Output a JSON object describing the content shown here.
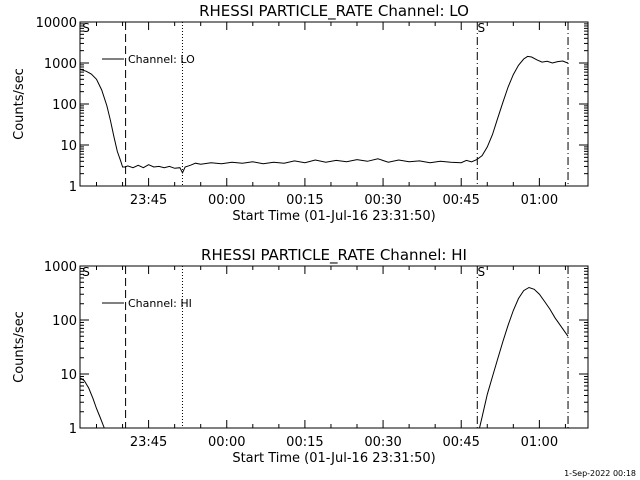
{
  "chart_data": [
    {
      "type": "line",
      "title": "RHESSI PARTICLE_RATE Channel: LO",
      "xlabel": "Start Time (01-Jul-16 23:31:50)",
      "ylabel": "Counts/sec",
      "yscale": "log",
      "ylim": [
        1,
        10000
      ],
      "yticks": [
        1,
        10,
        100,
        1000,
        10000
      ],
      "ytick_labels": [
        "1",
        "10",
        "100",
        "1000",
        "10000"
      ],
      "xlim": [
        "23:31:50",
        "01:09:20"
      ],
      "xticks": [
        "23:45",
        "00:00",
        "00:15",
        "00:30",
        "00:45",
        "01:00"
      ],
      "grid": false,
      "legend": {
        "position": "top-left",
        "entries": [
          "Channel: LO"
        ]
      },
      "markers": [
        {
          "time": "23:40:35",
          "style": "dashed"
        },
        {
          "time": "23:51:30",
          "style": "dotted"
        },
        {
          "time": "00:48:05",
          "style": "dash-dot",
          "label": "S"
        },
        {
          "time": "01:05:30",
          "style": "dash-dot"
        }
      ],
      "corner_labels": [
        "S"
      ],
      "series": [
        {
          "name": "Channel: LO",
          "x": [
            "23:31:50",
            "23:33:00",
            "23:34:00",
            "23:35:00",
            "23:36:00",
            "23:37:00",
            "23:37:40",
            "23:38:20",
            "23:39:00",
            "23:39:40",
            "23:40:00",
            "23:40:30",
            "23:41:00",
            "23:42:00",
            "23:43:00",
            "23:44:00",
            "23:45:00",
            "23:46:00",
            "23:47:00",
            "23:48:00",
            "23:49:00",
            "23:50:00",
            "23:51:00",
            "23:51:30",
            "23:52:00",
            "23:53:00",
            "23:54:00",
            "23:55:00",
            "23:57:00",
            "23:59:00",
            "00:01:00",
            "00:03:00",
            "00:05:00",
            "00:07:00",
            "00:09:00",
            "00:11:00",
            "00:13:00",
            "00:15:00",
            "00:17:00",
            "00:19:00",
            "00:21:00",
            "00:23:00",
            "00:25:00",
            "00:27:00",
            "00:29:00",
            "00:31:00",
            "00:33:00",
            "00:35:00",
            "00:37:00",
            "00:39:00",
            "00:41:00",
            "00:43:00",
            "00:45:00",
            "00:46:00",
            "00:47:00",
            "00:48:00",
            "00:49:00",
            "00:50:00",
            "00:51:00",
            "00:52:00",
            "00:53:00",
            "00:54:00",
            "00:55:00",
            "00:56:00",
            "00:57:00",
            "00:57:45",
            "00:58:30",
            "00:59:30",
            "01:00:30",
            "01:01:30",
            "01:02:30",
            "01:03:30",
            "01:04:30",
            "01:05:00",
            "01:05:30"
          ],
          "values": [
            700,
            630,
            540,
            400,
            220,
            90,
            40,
            16,
            7,
            4,
            2.9,
            2.9,
            3.1,
            2.8,
            3.2,
            2.8,
            3.3,
            2.9,
            3.0,
            2.8,
            3.0,
            2.7,
            2.8,
            2.1,
            2.9,
            3.2,
            3.6,
            3.4,
            3.7,
            3.5,
            3.8,
            3.6,
            3.9,
            3.5,
            3.8,
            3.6,
            4.1,
            3.7,
            4.3,
            3.8,
            4.2,
            3.9,
            4.4,
            4.0,
            4.6,
            3.8,
            4.3,
            3.9,
            4.1,
            3.7,
            4.0,
            3.8,
            3.7,
            4.2,
            3.9,
            4.4,
            5.5,
            9,
            18,
            45,
            110,
            260,
            520,
            880,
            1250,
            1450,
            1400,
            1200,
            1050,
            1100,
            1000,
            1080,
            1120,
            1050,
            1000
          ]
        }
      ]
    },
    {
      "type": "line",
      "title": "RHESSI PARTICLE_RATE Channel: HI",
      "xlabel": "Start Time (01-Jul-16 23:31:50)",
      "ylabel": "Counts/sec",
      "yscale": "log",
      "ylim": [
        1,
        1000
      ],
      "yticks": [
        1,
        10,
        100,
        1000
      ],
      "ytick_labels": [
        "1",
        "10",
        "100",
        "1000"
      ],
      "xlim": [
        "23:31:50",
        "01:09:20"
      ],
      "xticks": [
        "23:45",
        "00:00",
        "00:15",
        "00:30",
        "00:45",
        "01:00"
      ],
      "grid": false,
      "legend": {
        "position": "top-left",
        "entries": [
          "Channel: HI"
        ]
      },
      "markers": [
        {
          "time": "23:40:35",
          "style": "dashed"
        },
        {
          "time": "23:51:30",
          "style": "dotted"
        },
        {
          "time": "00:48:05",
          "style": "dash-dot",
          "label": "S"
        },
        {
          "time": "01:05:30",
          "style": "dash-dot"
        }
      ],
      "corner_labels": [
        "S"
      ],
      "series": [
        {
          "name": "Channel: HI",
          "x": [
            "23:31:50",
            "23:32:40",
            "23:33:30",
            "23:34:20",
            "23:35:00",
            "23:35:40",
            "23:36:10",
            "23:36:30"
          ],
          "values": [
            8.5,
            7.5,
            5.5,
            3.5,
            2.3,
            1.6,
            1.2,
            1.0
          ]
        },
        {
          "name": "Channel: HI",
          "x": [
            "00:48:30",
            "00:49:00",
            "00:49:30",
            "00:50:00",
            "00:51:00",
            "00:52:00",
            "00:53:00",
            "00:54:00",
            "00:55:00",
            "00:56:00",
            "00:57:00",
            "00:58:00",
            "00:59:00",
            "01:00:00",
            "01:01:00",
            "01:02:00",
            "01:03:00",
            "01:04:00",
            "01:05:30"
          ],
          "values": [
            1,
            1.6,
            2.6,
            4.2,
            9,
            19,
            40,
            80,
            150,
            250,
            350,
            400,
            370,
            300,
            220,
            160,
            110,
            80,
            50
          ]
        }
      ]
    }
  ],
  "timestamp": "1-Sep-2022 00:18"
}
